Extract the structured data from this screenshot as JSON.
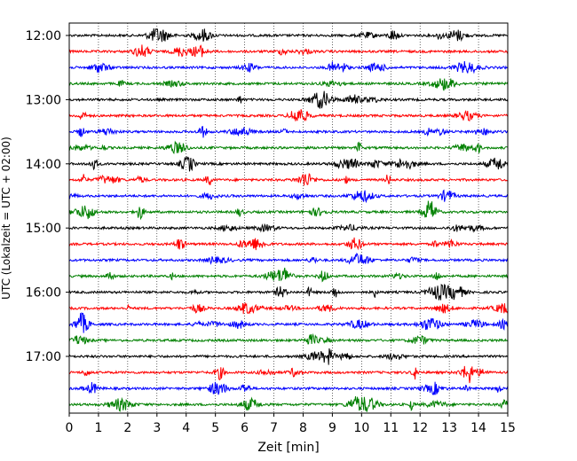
{
  "chart_data": {
    "type": "line",
    "title": "",
    "xlabel": "Zeit  [min]",
    "ylabel": "UTC (Lokalzeit = UTC + 02:00)",
    "xlim": [
      0,
      15
    ],
    "x_ticks": [
      "0",
      "1",
      "2",
      "3",
      "4",
      "5",
      "6",
      "7",
      "8",
      "9",
      "10",
      "11",
      "12",
      "13",
      "14",
      "15"
    ],
    "y_ticks": [
      "12:00",
      "13:00",
      "14:00",
      "15:00",
      "16:00",
      "17:00"
    ],
    "grid": "vertical dotted lines at each minute",
    "trace_interval_min": 15,
    "trace_colors": [
      "#000000",
      "#ff0000",
      "#0000ff",
      "#008000"
    ],
    "traces": [
      {
        "start": "12:00",
        "color": "#000000"
      },
      {
        "start": "12:15",
        "color": "#ff0000"
      },
      {
        "start": "12:30",
        "color": "#0000ff"
      },
      {
        "start": "12:45",
        "color": "#008000"
      },
      {
        "start": "13:00",
        "color": "#000000"
      },
      {
        "start": "13:15",
        "color": "#ff0000"
      },
      {
        "start": "13:30",
        "color": "#0000ff"
      },
      {
        "start": "13:45",
        "color": "#008000"
      },
      {
        "start": "14:00",
        "color": "#000000"
      },
      {
        "start": "14:15",
        "color": "#ff0000"
      },
      {
        "start": "14:30",
        "color": "#0000ff"
      },
      {
        "start": "14:45",
        "color": "#008000"
      },
      {
        "start": "15:00",
        "color": "#000000"
      },
      {
        "start": "15:15",
        "color": "#ff0000"
      },
      {
        "start": "15:30",
        "color": "#0000ff"
      },
      {
        "start": "15:45",
        "color": "#008000"
      },
      {
        "start": "16:00",
        "color": "#000000"
      },
      {
        "start": "16:15",
        "color": "#ff0000"
      },
      {
        "start": "16:30",
        "color": "#0000ff"
      },
      {
        "start": "16:45",
        "color": "#008000"
      },
      {
        "start": "17:00",
        "color": "#000000"
      },
      {
        "start": "17:15",
        "color": "#ff0000"
      },
      {
        "start": "17:30",
        "color": "#0000ff"
      },
      {
        "start": "17:45",
        "color": "#008000"
      }
    ]
  }
}
